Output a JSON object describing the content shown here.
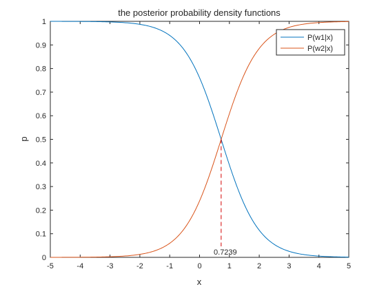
{
  "chart_data": {
    "type": "line",
    "title": "the posterior probability density functions",
    "xlabel": "x",
    "ylabel": "p",
    "xlim": [
      -5,
      5
    ],
    "ylim": [
      0,
      1
    ],
    "xticks": [
      "-5",
      "-4",
      "-3",
      "-2",
      "-1",
      "0",
      "1",
      "2",
      "3",
      "4",
      "5"
    ],
    "yticks": [
      "0",
      "0.1",
      "0.2",
      "0.3",
      "0.4",
      "0.5",
      "0.6",
      "0.7",
      "0.8",
      "0.9",
      "1"
    ],
    "legend_position": "top-right",
    "grid": false,
    "series": [
      {
        "name": "P(w1|x)",
        "color": "#0072BD",
        "x": [
          -5,
          -4,
          -3,
          -2.5,
          -2,
          -1.5,
          -1,
          -0.5,
          0,
          0.25,
          0.5,
          0.7239,
          1,
          1.25,
          1.5,
          2,
          2.5,
          3,
          4,
          5
        ],
        "y": [
          1,
          0.9997,
          0.998,
          0.995,
          0.987,
          0.969,
          0.927,
          0.837,
          0.674,
          0.584,
          0.587,
          0.5,
          0.375,
          0.275,
          0.19,
          0.085,
          0.034,
          0.013,
          0.002,
          0
        ]
      },
      {
        "name": "P(w2|x)",
        "color": "#D95319",
        "x": [
          -5,
          -4,
          -3,
          -2.5,
          -2,
          -1.5,
          -1,
          -0.5,
          0,
          0.25,
          0.5,
          0.7239,
          1,
          1.25,
          1.5,
          2,
          2.5,
          3,
          4,
          5
        ],
        "y": [
          0,
          0.0003,
          0.002,
          0.005,
          0.013,
          0.031,
          0.073,
          0.163,
          0.326,
          0.416,
          0.413,
          0.5,
          0.625,
          0.725,
          0.81,
          0.915,
          0.966,
          0.987,
          0.998,
          1
        ]
      }
    ],
    "annotations": [
      {
        "text": "0.7239",
        "x": 0.7239,
        "y": 0,
        "line_to_y": 0.5,
        "color": "#D40000",
        "style": "dashed"
      }
    ]
  }
}
